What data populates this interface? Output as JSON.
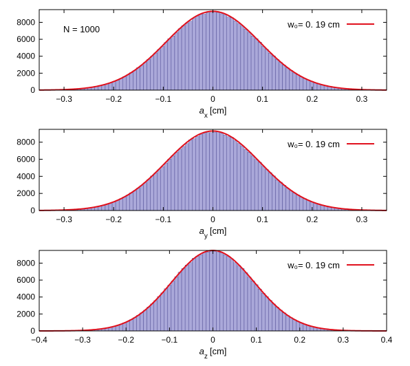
{
  "chart_data": [
    {
      "type": "bar",
      "panel": "x",
      "annotation": "N = 1000",
      "xlabel_var": "a",
      "xlabel_sub": "x",
      "xlabel_unit": "[cm]",
      "xlim": [
        -0.35,
        0.35
      ],
      "ylim": [
        0,
        9500
      ],
      "xticks": [
        -0.3,
        -0.2,
        -0.1,
        0,
        0.1,
        0.2,
        0.3
      ],
      "xtick_labels": [
        "−0.3",
        "−0.2",
        "−0.1",
        "0",
        "0.1",
        "0.2",
        "0.3"
      ],
      "yticks": [
        0,
        2000,
        4000,
        6000,
        8000
      ],
      "ytick_labels": [
        "0",
        "2000",
        "4000",
        "6000",
        "8000"
      ],
      "legend": "w₀= 0. 19 cm",
      "legend_placement": "top-right",
      "fit": {
        "peak": 9300,
        "w0": 0.19,
        "center": 0.0
      },
      "histogram": {
        "bin_width": 0.007,
        "range": [
          -0.35,
          0.35
        ],
        "peak": 9200,
        "profile": "gaussian",
        "w0": 0.19
      },
      "colors": {
        "bar_fill": "#aaa8d9",
        "bar_edge": "#2f2c7c",
        "fit_line": "#e0101c"
      }
    },
    {
      "type": "bar",
      "panel": "y",
      "xlabel_var": "a",
      "xlabel_sub": "y",
      "xlabel_unit": "[cm]",
      "xlim": [
        -0.35,
        0.35
      ],
      "ylim": [
        0,
        9500
      ],
      "xticks": [
        -0.3,
        -0.2,
        -0.1,
        0,
        0.1,
        0.2,
        0.3
      ],
      "xtick_labels": [
        "−0.3",
        "−0.2",
        "−0.1",
        "0",
        "0.1",
        "0.2",
        "0.3"
      ],
      "yticks": [
        0,
        2000,
        4000,
        6000,
        8000
      ],
      "ytick_labels": [
        "0",
        "2000",
        "4000",
        "6000",
        "8000"
      ],
      "legend": "w₀= 0. 19 cm",
      "legend_placement": "top-right",
      "fit": {
        "peak": 9300,
        "w0": 0.19,
        "center": 0.0
      },
      "histogram": {
        "bin_width": 0.007,
        "range": [
          -0.35,
          0.35
        ],
        "peak": 9200,
        "profile": "gaussian",
        "w0": 0.19
      },
      "colors": {
        "bar_fill": "#aaa8d9",
        "bar_edge": "#2f2c7c",
        "fit_line": "#e0101c"
      }
    },
    {
      "type": "bar",
      "panel": "z",
      "xlabel_var": "a",
      "xlabel_sub": "z",
      "xlabel_unit": "[cm]",
      "xlim": [
        -0.4,
        0.4
      ],
      "ylim": [
        0,
        9500
      ],
      "xticks": [
        -0.4,
        -0.3,
        -0.2,
        -0.1,
        0,
        0.1,
        0.2,
        0.3,
        0.4
      ],
      "xtick_labels": [
        "−0.4",
        "−0.3",
        "−0.2",
        "−0.1",
        "0",
        "0.1",
        "0.2",
        "0.3",
        "0.4"
      ],
      "yticks": [
        0,
        2000,
        4000,
        6000,
        8000
      ],
      "ytick_labels": [
        "0",
        "2000",
        "4000",
        "6000",
        "8000"
      ],
      "legend": "w₀= 0. 19 cm",
      "legend_placement": "top-right",
      "fit": {
        "peak": 9500,
        "w0": 0.19,
        "center": 0.0
      },
      "histogram": {
        "bin_width": 0.008,
        "range": [
          -0.4,
          0.4
        ],
        "peak": 9450,
        "profile": "gaussian",
        "w0": 0.19
      },
      "colors": {
        "bar_fill": "#aaa8d9",
        "bar_edge": "#2f2c7c",
        "fit_line": "#e0101c"
      }
    }
  ]
}
